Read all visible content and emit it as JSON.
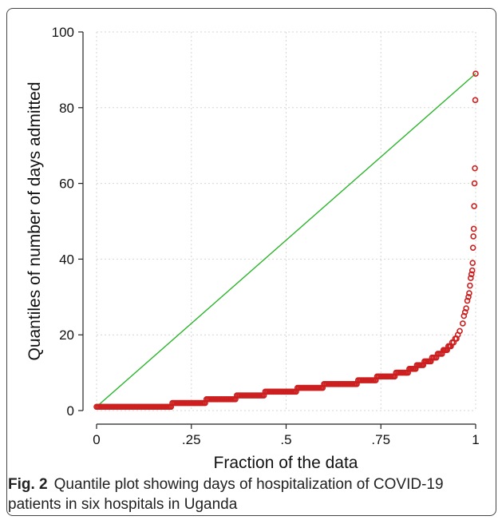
{
  "chart_data": {
    "type": "scatter",
    "title": "",
    "xlabel": "Fraction of the data",
    "ylabel": "Quantiles of number of days admitted",
    "xlim": [
      0,
      1
    ],
    "ylim": [
      0,
      100
    ],
    "x_ticks": [
      {
        "value": 0,
        "label": "0"
      },
      {
        "value": 0.25,
        "label": ".25"
      },
      {
        "value": 0.5,
        "label": ".5"
      },
      {
        "value": 0.75,
        "label": ".75"
      },
      {
        "value": 1,
        "label": "1"
      }
    ],
    "y_ticks": [
      {
        "value": 0,
        "label": "0"
      },
      {
        "value": 20,
        "label": "20"
      },
      {
        "value": 40,
        "label": "40"
      },
      {
        "value": 60,
        "label": "60"
      },
      {
        "value": 80,
        "label": "80"
      },
      {
        "value": 100,
        "label": "100"
      }
    ],
    "grid": true,
    "reference_line": {
      "x": [
        0,
        1
      ],
      "y": [
        1,
        89
      ],
      "color": "#2db52d"
    },
    "marker_color": "#cc1f1f",
    "step_levels": [
      {
        "value": 1,
        "from": 0.0,
        "to": 0.2
      },
      {
        "value": 2,
        "from": 0.2,
        "to": 0.29
      },
      {
        "value": 3,
        "from": 0.29,
        "to": 0.37
      },
      {
        "value": 4,
        "from": 0.37,
        "to": 0.445
      },
      {
        "value": 5,
        "from": 0.445,
        "to": 0.53
      },
      {
        "value": 6,
        "from": 0.53,
        "to": 0.6
      },
      {
        "value": 7,
        "from": 0.6,
        "to": 0.69
      },
      {
        "value": 8,
        "from": 0.69,
        "to": 0.74
      },
      {
        "value": 9,
        "from": 0.74,
        "to": 0.79
      },
      {
        "value": 10,
        "from": 0.79,
        "to": 0.825
      },
      {
        "value": 11,
        "from": 0.825,
        "to": 0.845
      },
      {
        "value": 12,
        "from": 0.845,
        "to": 0.865
      },
      {
        "value": 13,
        "from": 0.865,
        "to": 0.885
      },
      {
        "value": 14,
        "from": 0.885,
        "to": 0.9
      },
      {
        "value": 15,
        "from": 0.9,
        "to": 0.915
      },
      {
        "value": 16,
        "from": 0.915,
        "to": 0.928
      },
      {
        "value": 17,
        "from": 0.928,
        "to": 0.938
      },
      {
        "value": 18,
        "from": 0.938,
        "to": 0.946
      },
      {
        "value": 19,
        "from": 0.946,
        "to": 0.953
      },
      {
        "value": 20,
        "from": 0.953,
        "to": 0.958
      },
      {
        "value": 21,
        "from": 0.958,
        "to": 0.963
      }
    ],
    "tail_points": [
      {
        "x": 0.966,
        "y": 23
      },
      {
        "x": 0.969,
        "y": 25
      },
      {
        "x": 0.972,
        "y": 26
      },
      {
        "x": 0.975,
        "y": 27
      },
      {
        "x": 0.978,
        "y": 29
      },
      {
        "x": 0.981,
        "y": 30
      },
      {
        "x": 0.983,
        "y": 31
      },
      {
        "x": 0.985,
        "y": 33
      },
      {
        "x": 0.987,
        "y": 35
      },
      {
        "x": 0.989,
        "y": 36
      },
      {
        "x": 0.991,
        "y": 37
      },
      {
        "x": 0.992,
        "y": 39
      },
      {
        "x": 0.993,
        "y": 43
      },
      {
        "x": 0.994,
        "y": 46
      },
      {
        "x": 0.995,
        "y": 48
      },
      {
        "x": 0.996,
        "y": 54
      },
      {
        "x": 0.997,
        "y": 60
      },
      {
        "x": 0.998,
        "y": 64
      },
      {
        "x": 0.999,
        "y": 82
      },
      {
        "x": 1.0,
        "y": 89
      }
    ]
  },
  "caption": {
    "label": "Fig. 2",
    "text": "Quantile plot showing days of hospitalization of COVID-19 patients in six hospitals in Uganda"
  }
}
